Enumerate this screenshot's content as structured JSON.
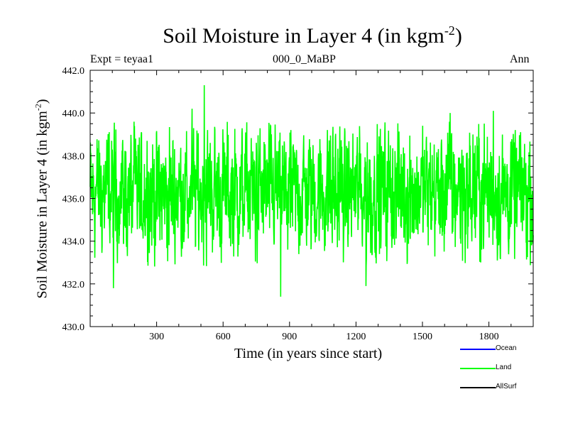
{
  "chart_data": {
    "type": "line",
    "title": "Soil Moisture in Layer 4 (in kgm",
    "title_exponent": "-2",
    "title_close": ")",
    "expt_label": "Expt = teyaa1",
    "subtitle": "000_0_MaBP",
    "season": "Ann",
    "xlabel": "Time (in years since start)",
    "ylabel": "Soil Moisture in Layer 4 (in kgm",
    "ylabel_exponent": "-2",
    "ylabel_close": ")",
    "xlim": [
      0,
      2000
    ],
    "ylim": [
      430.0,
      442.0
    ],
    "x_ticks": [
      300,
      600,
      900,
      1200,
      1500,
      1800
    ],
    "x_tick_labels": [
      "300",
      "600",
      "900",
      "1200",
      "1500",
      "1800"
    ],
    "y_ticks": [
      430,
      432,
      434,
      436,
      438,
      440,
      442
    ],
    "y_tick_labels": [
      "430.0",
      "432.0",
      "434.0",
      "436.0",
      "438.0",
      "440.0",
      "442.0"
    ],
    "grid": false,
    "series": [
      {
        "name": "Land",
        "color": "#00ff00",
        "mean": 436.3,
        "x_range": [
          0,
          2000
        ],
        "annual_values": "approximate noisy annual series, mostly between 433.5 and 439.5",
        "notable_points": [
          {
            "x": 105,
            "y": 431.8
          },
          {
            "x": 460,
            "y": 440.2
          },
          {
            "x": 515,
            "y": 441.3
          },
          {
            "x": 860,
            "y": 431.4
          },
          {
            "x": 1245,
            "y": 431.9
          },
          {
            "x": 1625,
            "y": 440.0
          },
          {
            "x": 1820,
            "y": 440.1
          }
        ]
      }
    ],
    "legend": [
      {
        "name": "Ocean",
        "color": "#0000ff"
      },
      {
        "name": "Land",
        "color": "#00ff00"
      },
      {
        "name": "AllSurf",
        "color": "#000000"
      }
    ]
  }
}
